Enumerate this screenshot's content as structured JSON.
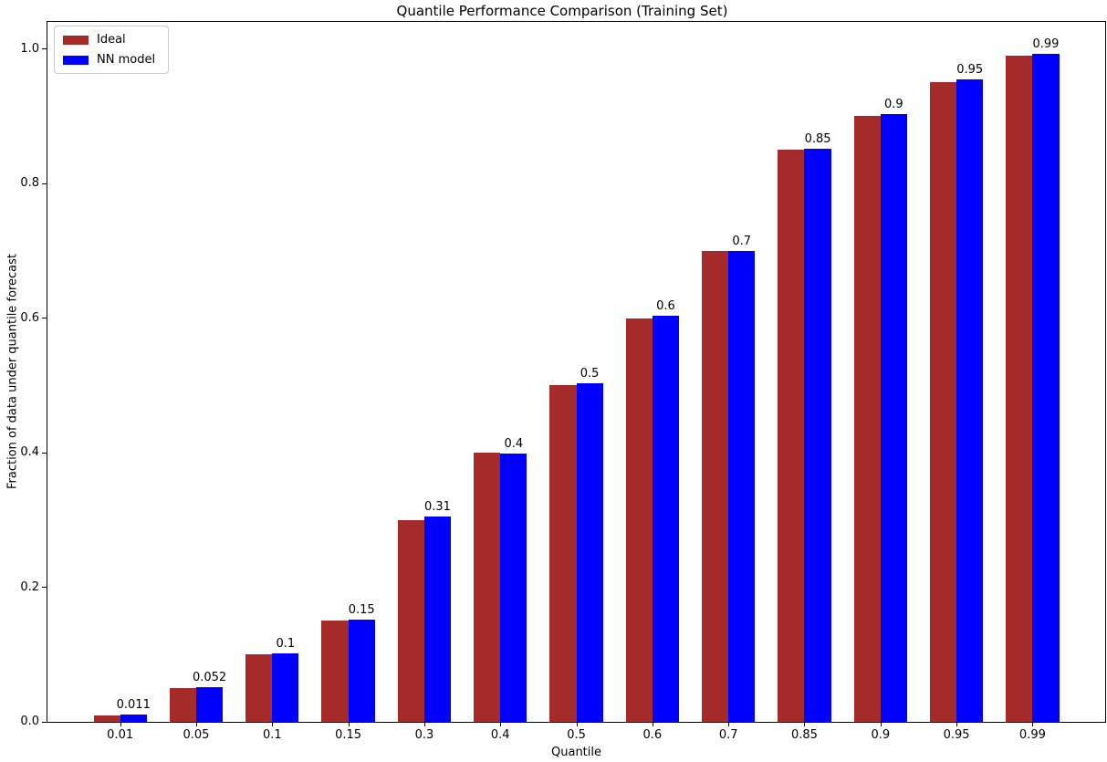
{
  "chart_data": {
    "type": "bar",
    "title": "Quantile Performance Comparison (Training Set)",
    "xlabel": "Quantile",
    "ylabel": "Fraction of data under quantile forecast",
    "categories": [
      "0.01",
      "0.05",
      "0.1",
      "0.15",
      "0.3",
      "0.4",
      "0.5",
      "0.6",
      "0.7",
      "0.85",
      "0.9",
      "0.95",
      "0.99"
    ],
    "series": [
      {
        "name": "Ideal",
        "color": "#A52A2A",
        "values": [
          0.01,
          0.05,
          0.1,
          0.15,
          0.3,
          0.4,
          0.5,
          0.6,
          0.7,
          0.85,
          0.9,
          0.95,
          0.99
        ]
      },
      {
        "name": "NN model",
        "color": "#0000FF",
        "values": [
          0.011,
          0.052,
          0.102,
          0.152,
          0.305,
          0.398,
          0.503,
          0.604,
          0.7,
          0.851,
          0.903,
          0.955,
          0.993
        ]
      }
    ],
    "bar_labels": [
      "0.011",
      "0.052",
      "0.1",
      "0.15",
      "0.31",
      "0.4",
      "0.5",
      "0.6",
      "0.7",
      "0.85",
      "0.9",
      "0.95",
      "0.99"
    ],
    "yticks": [
      "0.0",
      "0.2",
      "0.4",
      "0.6",
      "0.8",
      "1.0"
    ],
    "ylim": [
      0,
      1.04
    ],
    "grid": false,
    "legend_position": "upper left"
  }
}
